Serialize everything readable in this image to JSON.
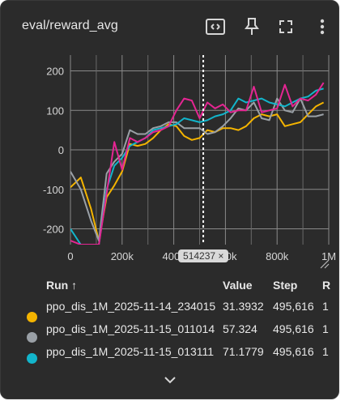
{
  "card": {
    "title": "eval/reward_avg"
  },
  "header_icons": [
    "fit-domain-icon",
    "pin-icon",
    "fullscreen-icon",
    "more-vert-icon"
  ],
  "hover": {
    "step_label": "514237",
    "close_glyph": "×"
  },
  "chart_data": {
    "type": "line",
    "title": "eval/reward_avg",
    "xlabel": "",
    "ylabel": "",
    "xlim": [
      0,
      1000000
    ],
    "ylim": [
      -240,
      240
    ],
    "xticks": [
      0,
      200000,
      400000,
      600000,
      800000,
      1000000
    ],
    "xtick_labels": [
      "0",
      "200k",
      "400k",
      "600k",
      "800k",
      "1M"
    ],
    "yticks": [
      -200,
      -100,
      0,
      100,
      200
    ],
    "ytick_labels": [
      "-200",
      "-100",
      "0",
      "100",
      "200"
    ],
    "grid": true,
    "hover_x": 514237,
    "series": [
      {
        "color": "#f4b400",
        "x": [
          0,
          40000,
          80000,
          110000,
          140000,
          170000,
          200000,
          230000,
          260000,
          290000,
          320000,
          350000,
          380000,
          410000,
          440000,
          470000,
          500000,
          530000,
          560000,
          590000,
          620000,
          650000,
          680000,
          710000,
          740000,
          770000,
          800000,
          830000,
          860000,
          890000,
          920000,
          950000,
          980000
        ],
        "y": [
          -95,
          -70,
          -150,
          -230,
          -120,
          -90,
          -55,
          15,
          10,
          15,
          30,
          50,
          65,
          60,
          35,
          25,
          30,
          50,
          45,
          55,
          55,
          50,
          60,
          80,
          90,
          85,
          90,
          60,
          65,
          70,
          90,
          110,
          120
        ]
      },
      {
        "color": "#9aa0a6",
        "x": [
          0,
          40000,
          80000,
          110000,
          140000,
          170000,
          200000,
          230000,
          260000,
          290000,
          320000,
          350000,
          380000,
          410000,
          440000,
          470000,
          500000,
          530000,
          560000,
          590000,
          620000,
          650000,
          680000,
          710000,
          740000,
          770000,
          800000,
          830000,
          860000,
          890000,
          920000,
          950000,
          980000
        ],
        "y": [
          -55,
          -100,
          -180,
          -230,
          -60,
          -30,
          -10,
          50,
          40,
          40,
          55,
          60,
          70,
          70,
          55,
          55,
          55,
          40,
          45,
          60,
          80,
          105,
          100,
          120,
          80,
          75,
          130,
          100,
          95,
          130,
          85,
          85,
          90
        ]
      },
      {
        "color": "#12b5cb",
        "x": [
          0,
          40000,
          80000,
          110000,
          140000,
          170000,
          200000,
          230000,
          260000,
          290000,
          320000,
          350000,
          380000,
          410000,
          440000,
          470000,
          500000,
          530000,
          560000,
          590000,
          620000,
          650000,
          680000,
          710000,
          740000,
          770000,
          800000,
          830000,
          860000,
          890000,
          920000,
          950000,
          980000
        ],
        "y": [
          -200,
          -240,
          -240,
          -240,
          -100,
          -40,
          -20,
          10,
          20,
          30,
          50,
          55,
          60,
          65,
          80,
          75,
          70,
          75,
          85,
          90,
          100,
          130,
          120,
          125,
          130,
          120,
          115,
          110,
          120,
          130,
          135,
          150,
          155
        ]
      },
      {
        "color": "#e52592",
        "x": [
          0,
          40000,
          80000,
          110000,
          140000,
          170000,
          200000,
          230000,
          260000,
          290000,
          320000,
          350000,
          380000,
          410000,
          440000,
          470000,
          500000,
          530000,
          560000,
          590000,
          620000,
          650000,
          680000,
          710000,
          740000,
          770000,
          800000,
          830000,
          860000,
          890000,
          920000,
          950000,
          980000
        ],
        "y": [
          -230,
          -240,
          -240,
          -240,
          -110,
          20,
          -50,
          30,
          20,
          30,
          45,
          50,
          60,
          100,
          130,
          125,
          80,
          120,
          105,
          115,
          95,
          100,
          100,
          160,
          95,
          100,
          105,
          165,
          110,
          130,
          125,
          140,
          170
        ]
      }
    ]
  },
  "table": {
    "headers": {
      "run": "Run ↑",
      "value": "Value",
      "step": "Step",
      "relative": "R"
    },
    "rows": [
      {
        "color": "#f4b400",
        "run": "ppo_dis_1M_2025-11-14_234015",
        "value": "31.3932",
        "step": "495,616",
        "relative": "1"
      },
      {
        "color": "#9aa0a6",
        "run": "ppo_dis_1M_2025-11-15_011014",
        "value": "57.324",
        "step": "495,616",
        "relative": "1"
      },
      {
        "color": "#12b5cb",
        "run": "ppo_dis_1M_2025-11-15_013111",
        "value": "71.1779",
        "step": "495,616",
        "relative": "1"
      }
    ]
  },
  "footer": {
    "expand_icon": "chevron-down-icon"
  }
}
